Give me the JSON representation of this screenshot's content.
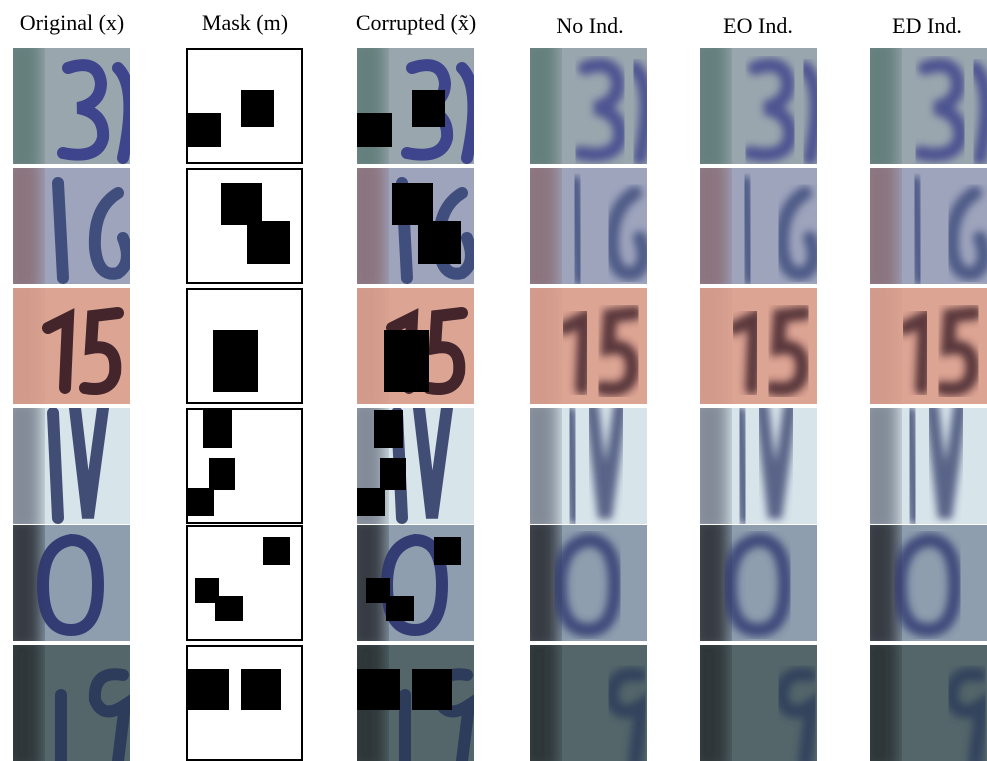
{
  "figure": {
    "columns": [
      "Original (x)",
      "Mask (m)",
      "Corrupted (x̃)",
      "No Ind.",
      "EO Ind.",
      "ED Ind."
    ]
  }
}
